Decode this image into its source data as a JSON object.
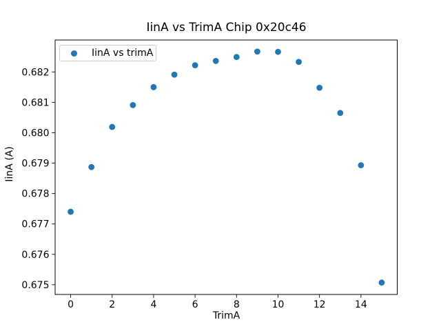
{
  "figure": {
    "background": "#ffffff"
  },
  "chart_data": {
    "type": "scatter",
    "title": "IinA vs TrimA Chip 0x20c46",
    "xlabel": "TrimA",
    "ylabel": "IinA (A)",
    "legend": [
      {
        "label": "IinA vs trimA",
        "marker": "circle"
      }
    ],
    "legend_position": "upper-left",
    "grid": false,
    "marker_color": "#1f77b4",
    "axis_color": "#000000",
    "x": [
      0,
      1,
      2,
      3,
      4,
      5,
      6,
      7,
      8,
      9,
      10,
      11,
      12,
      13,
      14,
      15
    ],
    "y": [
      0.6774,
      0.67887,
      0.68019,
      0.68091,
      0.6815,
      0.68191,
      0.68222,
      0.68236,
      0.68249,
      0.68267,
      0.68266,
      0.68233,
      0.68148,
      0.68065,
      0.67893,
      0.67507
    ],
    "xlim": [
      -0.75,
      15.75
    ],
    "ylim": [
      0.67468,
      0.68305
    ],
    "xticks": [
      0,
      2,
      4,
      6,
      8,
      10,
      12,
      14
    ],
    "xtick_labels": [
      "0",
      "2",
      "4",
      "6",
      "8",
      "10",
      "12",
      "14"
    ],
    "yticks": [
      0.675,
      0.676,
      0.677,
      0.678,
      0.679,
      0.68,
      0.681,
      0.682
    ],
    "ytick_labels": [
      "0.675",
      "0.676",
      "0.677",
      "0.678",
      "0.679",
      "0.680",
      "0.681",
      "0.682"
    ]
  }
}
